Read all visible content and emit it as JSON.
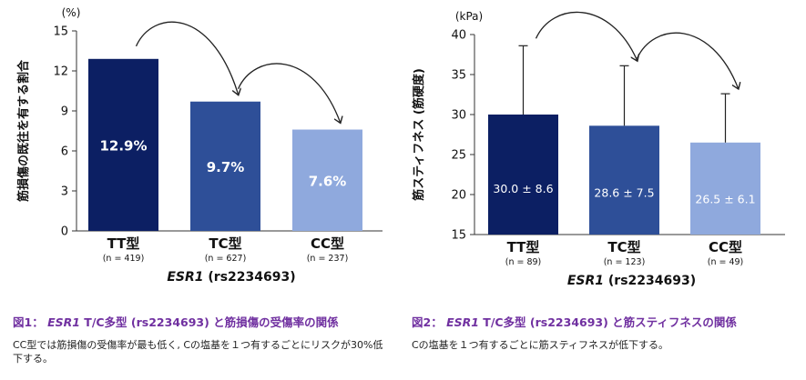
{
  "chart_data": [
    {
      "type": "bar",
      "categories": [
        "TT型",
        "TC型",
        "CC型"
      ],
      "n_labels": [
        "(n = 419)",
        "(n = 627)",
        "(n = 237)"
      ],
      "values": [
        12.9,
        9.7,
        7.6
      ],
      "data_labels": [
        "12.9%",
        "9.7%",
        "7.6%"
      ],
      "colors": [
        "#0c1f63",
        "#2e4f98",
        "#8fa9dd"
      ],
      "ylabel": "筋損傷の既往を有する割合",
      "yunit": "(%)",
      "xlabel_italic": "ESR1",
      "xlabel_rest": " (rs2234693)",
      "ylim": [
        0,
        15
      ],
      "yticks": [
        0,
        3,
        6,
        9,
        12,
        15
      ],
      "grid": false,
      "error_bars": false
    },
    {
      "type": "bar",
      "categories": [
        "TT型",
        "TC型",
        "CC型"
      ],
      "n_labels": [
        "(n = 89)",
        "(n = 123)",
        "(n = 49)"
      ],
      "values": [
        30.0,
        28.6,
        26.5
      ],
      "errors": [
        8.6,
        7.5,
        6.1
      ],
      "data_labels": [
        "30.0 ± 8.6",
        "28.6 ± 7.5",
        "26.5 ± 6.1"
      ],
      "colors": [
        "#0c1f63",
        "#2e4f98",
        "#8fa9dd"
      ],
      "ylabel": "筋スティフネス (筋硬度)",
      "yunit": "(kPa)",
      "xlabel_italic": "ESR1",
      "xlabel_rest": " (rs2234693)",
      "ylim": [
        15,
        40
      ],
      "yticks": [
        15,
        20,
        25,
        30,
        35,
        40
      ],
      "grid": false,
      "error_bars": true
    }
  ],
  "captions": [
    {
      "title_prefix": "図1： ",
      "title_italic": "ESR1",
      "title_rest": " T/C多型 (rs2234693) と筋損傷の受傷率の関係",
      "body": "CC型では筋損傷の受傷率が最も低く, Cの塩基を１つ有するごとにリスクが30%低下する。"
    },
    {
      "title_prefix": "図2： ",
      "title_italic": "ESR1",
      "title_rest": " T/C多型 (rs2234693) と筋スティフネスの関係",
      "body": "Cの塩基を１つ有するごとに筋スティフネスが低下する。"
    }
  ]
}
